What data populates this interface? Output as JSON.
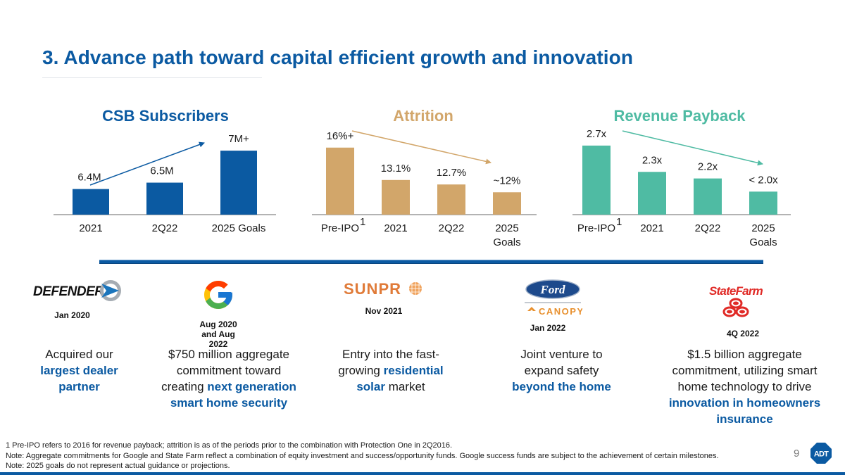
{
  "page": {
    "title": "3. Advance path toward capital efficient growth and innovation",
    "page_number": "9",
    "brand_logo": "ADT",
    "colors": {
      "primary_blue": "#0b5aa2",
      "attrition_tan": "#d2a66a",
      "payback_teal": "#4fbba3",
      "axis_gray": "#9a9a9a"
    }
  },
  "chart_data": [
    {
      "type": "bar",
      "title": "CSB Subscribers",
      "title_color": "#0b5aa2",
      "bar_color": "#0b5aa2",
      "categories": [
        "2021",
        "2Q22",
        "2025 Goals"
      ],
      "category_superscripts": [
        "",
        "",
        ""
      ],
      "values": [
        6.4,
        6.5,
        7.0
      ],
      "data_labels": [
        "6.4M",
        "6.5M",
        "7M+"
      ],
      "unit": "M subscribers",
      "trend_arrow": "up",
      "xlabel": "",
      "ylabel": "",
      "ylim": [
        6.0,
        7.1
      ],
      "grid": false,
      "legend": "none"
    },
    {
      "type": "bar",
      "title": "Attrition",
      "title_color": "#d2a66a",
      "bar_color": "#d2a66a",
      "categories": [
        "Pre-IPO",
        "2021",
        "2Q22",
        "2025 Goals"
      ],
      "category_superscripts": [
        "1",
        "",
        "",
        ""
      ],
      "values": [
        16.0,
        13.1,
        12.7,
        12.0
      ],
      "data_labels": [
        "16%+",
        "13.1%",
        "12.7%",
        "~12%"
      ],
      "unit": "%",
      "trend_arrow": "down",
      "xlabel": "",
      "ylabel": "",
      "ylim": [
        10.0,
        16.3
      ],
      "grid": false,
      "legend": "none"
    },
    {
      "type": "bar",
      "title": "Revenue Payback",
      "title_color": "#4fbba3",
      "bar_color": "#4fbba3",
      "categories": [
        "Pre-IPO",
        "2021",
        "2Q22",
        "2025 Goals"
      ],
      "category_superscripts": [
        "1",
        "",
        "",
        ""
      ],
      "values": [
        2.7,
        2.3,
        2.2,
        2.0
      ],
      "data_labels": [
        "2.7x",
        "2.3x",
        "2.2x",
        "< 2.0x"
      ],
      "unit": "x",
      "trend_arrow": "down",
      "xlabel": "",
      "ylabel": "",
      "ylim": [
        1.65,
        2.72
      ],
      "grid": false,
      "legend": "none"
    }
  ],
  "partners": [
    {
      "name": "Defenders",
      "logo_text": "DEFENDERS",
      "date": "Jan 2020",
      "description": [
        {
          "text": "Acquired our ",
          "bold": false
        },
        {
          "text": "largest dealer partner",
          "bold": true
        }
      ]
    },
    {
      "name": "Google",
      "logo_text": "G",
      "date": "Aug 2020 and Aug 2022",
      "description": [
        {
          "text": "$750 million aggregate commitment toward creating ",
          "bold": false
        },
        {
          "text": "next generation smart home security",
          "bold": true
        }
      ]
    },
    {
      "name": "Sunpro",
      "logo_text": "SUNPRO",
      "date": "Nov 2021",
      "description": [
        {
          "text": "Entry into the fast-growing ",
          "bold": false
        },
        {
          "text": "residential solar",
          "bold": true
        },
        {
          "text": " market",
          "bold": false
        }
      ]
    },
    {
      "name": "Ford Canopy",
      "logo_text": "Ford",
      "logo_subtext": "CANOPY",
      "date": "Jan 2022",
      "description": [
        {
          "text": "Joint venture to expand safety ",
          "bold": false
        },
        {
          "text": "beyond the home",
          "bold": true
        }
      ]
    },
    {
      "name": "State Farm",
      "logo_text": "StateFarm",
      "date": "4Q 2022",
      "description": [
        {
          "text": "$1.5 billion aggregate commitment, utilizing smart home technology to drive ",
          "bold": false
        },
        {
          "text": "innovation in homeowners insurance",
          "bold": true
        }
      ]
    }
  ],
  "footnotes": [
    "1 Pre-IPO refers to 2016 for revenue payback; attrition is as of the periods prior to the combination with Protection One in 2Q2016.",
    "Note:  Aggregate commitments for Google and State Farm reflect a combination of equity investment and success/opportunity funds.  Google success funds are subject to the achievement of certain milestones.",
    "Note: 2025 goals do not represent actual guidance or projections."
  ]
}
